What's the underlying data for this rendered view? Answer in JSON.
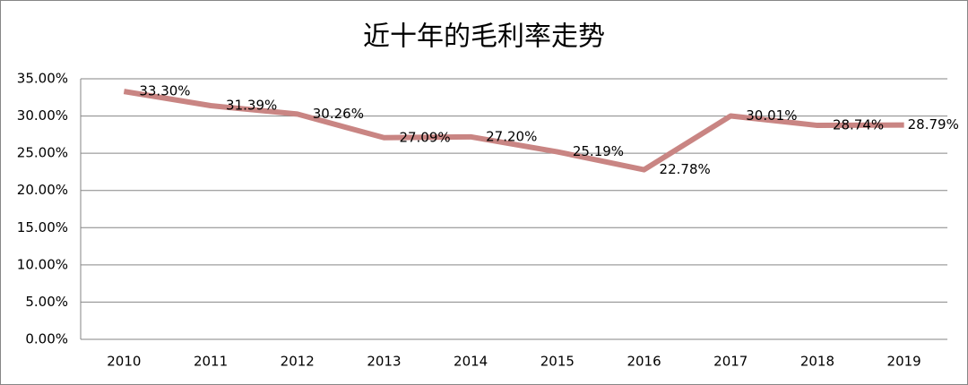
{
  "chart_data": {
    "type": "line",
    "title": "近十年的毛利率走势",
    "categories": [
      "2010",
      "2011",
      "2012",
      "2013",
      "2014",
      "2015",
      "2016",
      "2017",
      "2018",
      "2019"
    ],
    "series": [
      {
        "color": "#c98583",
        "values": [
          33.3,
          31.39,
          30.26,
          27.09,
          27.2,
          25.19,
          22.78,
          30.01,
          28.74,
          28.79
        ],
        "value_labels": [
          "33.30%",
          "31.39%",
          "30.26%",
          "27.09%",
          "27.20%",
          "25.19%",
          "22.78%",
          "30.01%",
          "28.74%",
          "28.79%"
        ]
      }
    ],
    "ylim": [
      0,
      35
    ],
    "yticks": [
      {
        "value": 0,
        "label": "0.00%"
      },
      {
        "value": 5,
        "label": "5.00%"
      },
      {
        "value": 10,
        "label": "10.00%"
      },
      {
        "value": 15,
        "label": "15.00%"
      },
      {
        "value": 20,
        "label": "20.00%"
      },
      {
        "value": 25,
        "label": "25.00%"
      },
      {
        "value": 30,
        "label": "30.00%"
      },
      {
        "value": 35,
        "label": "35.00%"
      }
    ],
    "grid": true
  }
}
